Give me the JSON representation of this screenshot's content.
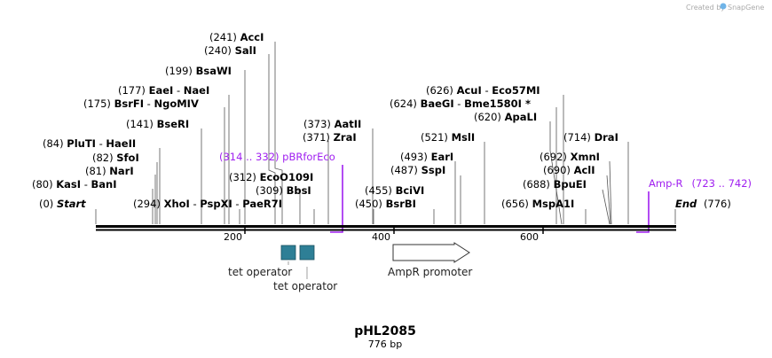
{
  "header": {
    "created_by": "Created by",
    "brand": "SnapGene"
  },
  "plasmid": {
    "name": "pHL2085",
    "length_label": "776 bp"
  },
  "sites": [
    {
      "pos": "(241)",
      "name": "AccI"
    },
    {
      "pos": "(240)",
      "name": "SalI"
    },
    {
      "pos": "(199)",
      "name": "BsaWI"
    },
    {
      "pos": "(177)",
      "name": "EaeI",
      "sep": "-",
      "name2": "NaeI"
    },
    {
      "pos": "(175)",
      "name": "BsrFI",
      "sep": "-",
      "name2": "NgoMIV"
    },
    {
      "pos": "(141)",
      "name": "BseRI"
    },
    {
      "pos": "(84)",
      "name": "PluTI",
      "sep": "-",
      "name2": "HaeII"
    },
    {
      "pos": "(82)",
      "name": "SfoI"
    },
    {
      "pos": "(81)",
      "name": "NarI"
    },
    {
      "pos": "(80)",
      "name": "KasI",
      "sep": "-",
      "name2": "BanI"
    },
    {
      "pos": "(0)",
      "name": "Start"
    },
    {
      "pos": "(294)",
      "name": "XhoI",
      "sep": "-",
      "name2": "PspXI",
      "sep2": "-",
      "name3": "PaeR7I"
    },
    {
      "pos": "(312)",
      "name": "EcoO109I"
    },
    {
      "pos": "(309)",
      "name": "BbsI"
    },
    {
      "pos": "(373)",
      "name": "AatII"
    },
    {
      "pos": "(371)",
      "name": "ZraI"
    },
    {
      "pos": "(455)",
      "name": "BciVI"
    },
    {
      "pos": "(450)",
      "name": "BsrBI"
    },
    {
      "pos": "(493)",
      "name": "EarI"
    },
    {
      "pos": "(487)",
      "name": "SspI"
    },
    {
      "pos": "(521)",
      "name": "MslI"
    },
    {
      "pos": "(626)",
      "name": "AcuI",
      "sep": "-",
      "name2": "Eco57MI"
    },
    {
      "pos": "(624)",
      "name": "BaeGI",
      "sep": "-",
      "name2": "Bme1580I *"
    },
    {
      "pos": "(620)",
      "name": "ApaLI"
    },
    {
      "pos": "(714)",
      "name": "DraI"
    },
    {
      "pos": "(692)",
      "name": "XmnI"
    },
    {
      "pos": "(690)",
      "name": "AclI"
    },
    {
      "pos": "(688)",
      "name": "BpuEI"
    },
    {
      "pos": "(656)",
      "name": "MspA1I"
    },
    {
      "pos": "(776)",
      "name": "End"
    }
  ],
  "primers": [
    {
      "range": "(314 .. 332)",
      "name": "pBRforEco"
    },
    {
      "name": "Amp-R",
      "range": "(723 .. 742)"
    }
  ],
  "axis": {
    "ticks": [
      "200",
      "400",
      "600"
    ]
  },
  "features": {
    "tet1": "tet operator",
    "tet2": "tet operator",
    "promoter": "AmpR promoter"
  },
  "colors": {
    "primer": "#a020f0",
    "operator": "#2e7f96",
    "backbone": "#000000"
  }
}
